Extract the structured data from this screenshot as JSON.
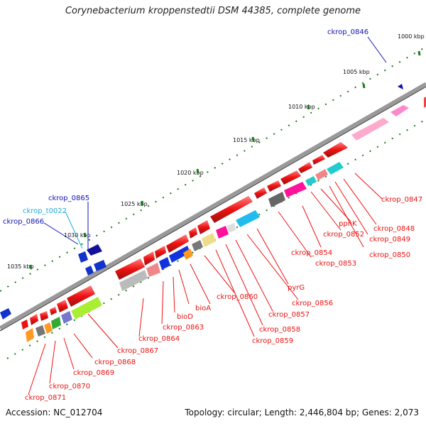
{
  "title": "Corynebacterium kroppenstedtii DSM 44385, complete genome",
  "footer": {
    "accession": "Accession: NC_012704",
    "info": "Topology: circular; Length: 2,446,804 bp; Genes: 2,073"
  },
  "ticks": [
    "1000 kbp",
    "1005 kbp",
    "1010 kbp",
    "1015 kbp",
    "1020 kbp",
    "1025 kbp",
    "1030 kbp",
    "1035 kbp"
  ],
  "colors": {
    "red": "#ee1111",
    "blue_label": "#1111bb",
    "cyan_label": "#22aadd",
    "backbone": "#888888",
    "tick": "#1a7a1a"
  },
  "genes": [
    {
      "name": "ckrop_0846",
      "color": "#1111bb"
    },
    {
      "name": "ckrop_0847",
      "color": "#ee1111"
    },
    {
      "name": "ckrop_0848",
      "color": "#ee1111"
    },
    {
      "name": "ckrop_0849",
      "color": "#ee1111"
    },
    {
      "name": "ckrop_0850",
      "color": "#ee1111"
    },
    {
      "name": "ckrop_0852",
      "color": "#ee1111"
    },
    {
      "name": "ppnK",
      "color": "#ee1111"
    },
    {
      "name": "ckrop_0854",
      "color": "#ee1111"
    },
    {
      "name": "ckrop_0853",
      "color": "#ee1111"
    },
    {
      "name": "pyrG",
      "color": "#ee1111"
    },
    {
      "name": "ckrop_0856",
      "color": "#ee1111"
    },
    {
      "name": "ckrop_0857",
      "color": "#ee1111"
    },
    {
      "name": "ckrop_0858",
      "color": "#ee1111"
    },
    {
      "name": "ckrop_0859",
      "color": "#ee1111"
    },
    {
      "name": "ckrop_0860",
      "color": "#ee1111"
    },
    {
      "name": "bioA",
      "color": "#ee1111"
    },
    {
      "name": "bioD",
      "color": "#ee1111"
    },
    {
      "name": "ckrop_0863",
      "color": "#ee1111"
    },
    {
      "name": "ckrop_0864",
      "color": "#ee1111"
    },
    {
      "name": "ckrop_0867",
      "color": "#ee1111"
    },
    {
      "name": "ckrop_0868",
      "color": "#ee1111"
    },
    {
      "name": "ckrop_0869",
      "color": "#ee1111"
    },
    {
      "name": "ckrop_0870",
      "color": "#ee1111"
    },
    {
      "name": "ckrop_0871",
      "color": "#ee1111"
    },
    {
      "name": "ckrop_0865",
      "color": "#1111bb"
    },
    {
      "name": "ckrop_t0022",
      "color": "#22aadd"
    },
    {
      "name": "ckrop_0866",
      "color": "#1111bb"
    }
  ]
}
